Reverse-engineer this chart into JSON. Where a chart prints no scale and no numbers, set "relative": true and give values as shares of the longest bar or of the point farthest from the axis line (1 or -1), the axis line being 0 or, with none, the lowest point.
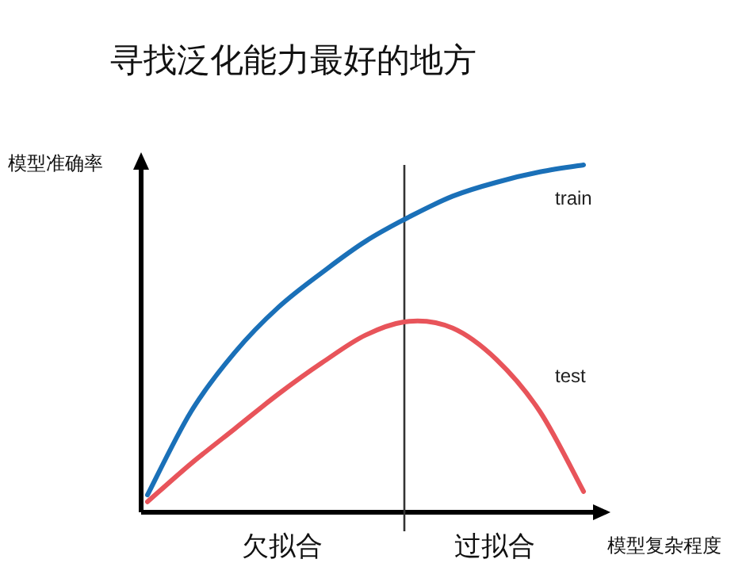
{
  "chart_data": {
    "type": "line",
    "title": "寻找泛化能力最好的地方",
    "xlabel": "模型复杂程度",
    "ylabel": "模型准确率",
    "relative": true,
    "categories": [
      null,
      null,
      null,
      null,
      null,
      null,
      null,
      null,
      null,
      null,
      null
    ],
    "series": [
      {
        "name": "train",
        "color": "#1a70b8",
        "values": [
          0.05,
          0.29,
          0.46,
          0.59,
          0.69,
          0.78,
          0.85,
          0.91,
          0.95,
          0.98,
          1.0
        ]
      },
      {
        "name": "test",
        "color": "#e8545a",
        "values": [
          0.03,
          0.14,
          0.24,
          0.34,
          0.43,
          0.51,
          0.55,
          0.53,
          0.44,
          0.29,
          0.06
        ]
      }
    ],
    "annotations": [
      "欠拟合",
      "过拟合"
    ],
    "marker": "none",
    "line_style": "solid"
  }
}
